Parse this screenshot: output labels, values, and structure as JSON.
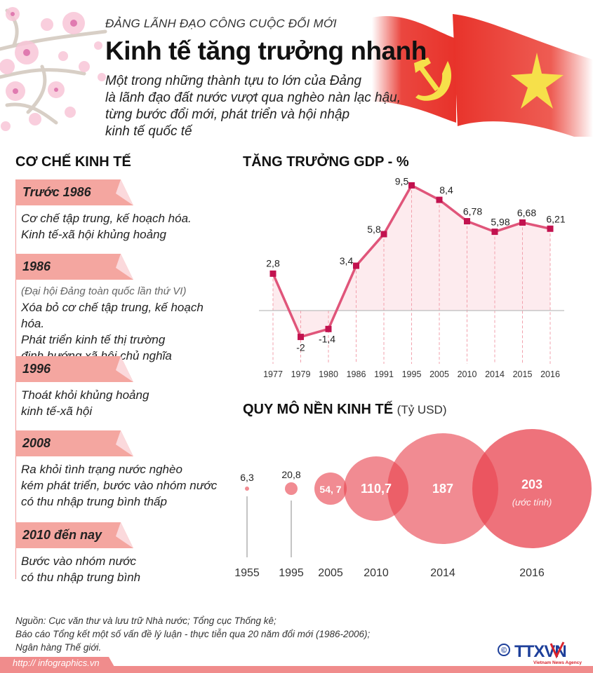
{
  "header": {
    "kicker": "ĐẢNG LÃNH ĐẠO CÔNG CUỘC ĐỔI MỚI",
    "title": "Kinh tế tăng trưởng nhanh",
    "lead": [
      "Một trong những thành tựu to lớn của Đảng",
      "là lãnh đạo đất nước vượt qua nghèo nàn lạc hậu,",
      "từng bước đổi mới, phát triển và hội nhập",
      "kinh tế quốc tế"
    ],
    "decorations": [
      "cherry-blossom-branch",
      "party-flag",
      "vietnam-national-flag"
    ]
  },
  "mechanism": {
    "title": "CƠ CHẾ KINH TẾ",
    "periods": [
      {
        "label": "Trước 1986",
        "note": "",
        "lines": [
          "Cơ chế tập trung, kế hoạch hóa.",
          "Kinh tế-xã hội khủng hoảng"
        ]
      },
      {
        "label": "1986",
        "note": "(Đại hội Đảng toàn quốc lần thứ VI)",
        "lines": [
          "Xóa bỏ cơ chế tập trung, kế hoạch hóa.",
          "Phát triển kinh tế thị trường",
          "định hướng xã hội chủ nghĩa"
        ]
      },
      {
        "label": "1996",
        "note": "",
        "lines": [
          "Thoát khỏi khủng hoảng",
          "kinh tế-xã hội"
        ]
      },
      {
        "label": "2008",
        "note": "",
        "lines": [
          "Ra khỏi tình trạng nước nghèo",
          "kém phát triển, bước vào nhóm nước",
          "có thu nhập trung bình thấp"
        ]
      },
      {
        "label": "2010 đến nay",
        "note": "",
        "lines": [
          "Bước vào nhóm nước",
          "có thu nhập trung bình"
        ]
      }
    ]
  },
  "colors": {
    "ribbon": "#f4a6a0",
    "ribbon_fold": "#fbd9dc",
    "line": "#e0557a",
    "marker": "#c2124f",
    "area_fill": "#fde6ea",
    "bubble": "#e8434f",
    "footer": "#f08c8c",
    "flag_red": "#e8322a",
    "flag_yellow": "#f6e04a",
    "logo_blue": "#1d3f9a"
  },
  "chart_data": [
    {
      "type": "line",
      "title": "TĂNG TRƯỞNG GDP - %",
      "xlabel": "",
      "ylabel": "%",
      "categories": [
        "1977",
        "1979",
        "1980",
        "1986",
        "1991",
        "1995",
        "2005",
        "2010",
        "2014",
        "2015",
        "2016"
      ],
      "values": [
        2.8,
        -2,
        -1.4,
        3.4,
        5.8,
        9.5,
        8.4,
        6.78,
        5.98,
        6.68,
        6.21
      ],
      "value_labels": [
        "2,8",
        "-2",
        "-1,4",
        "3,4",
        "5,8",
        "9,5",
        "8,4",
        "6,78",
        "5,98",
        "6,68",
        "6,21"
      ],
      "ylim": [
        -2.5,
        10
      ],
      "grid": "vertical dashed guide lines per point; zero baseline",
      "area_fill": true
    },
    {
      "type": "bubble",
      "title": "QUY MÔ NỀN KINH TẾ",
      "subtitle": "(Tỷ USD)",
      "categories": [
        "1955",
        "1995",
        "2005",
        "2010",
        "2014",
        "2016"
      ],
      "values": [
        6.3,
        20.8,
        54.7,
        110.7,
        187,
        203
      ],
      "value_labels": [
        "6,3",
        "20,8",
        "54, 7",
        "110,7",
        "187",
        "203"
      ],
      "annotations": [
        {
          "category": "2016",
          "text": "(ước tính)"
        }
      ]
    }
  ],
  "gdp": {
    "title": "TĂNG TRƯỞNG GDP - %"
  },
  "scale": {
    "title": "QUY MÔ NỀN KINH TẾ",
    "unit": "(Tỷ USD)",
    "estimate_note": "(ước tính)"
  },
  "footer": {
    "sources": [
      "Nguồn: Cục văn thư và lưu trữ Nhà nước; Tổng cục Thống kê;",
      "Báo cáo Tổng kết một số vấn đề lý luận - thực tiễn qua 20 năm đổi mới (1986-2006);",
      "Ngân hàng Thế giới."
    ],
    "url": "http:// infographics.vn",
    "copyright": "©",
    "logo_text": "TTXVN",
    "logo_tagline": "Vietnam News Agency"
  }
}
